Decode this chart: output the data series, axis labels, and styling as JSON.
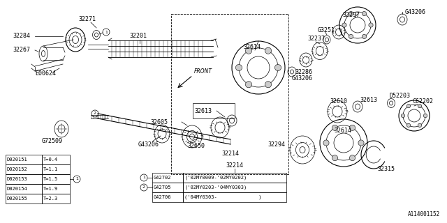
{
  "bg_color": "#FFFFFF",
  "diagram_number": "A114001152",
  "table1_rows": [
    [
      "D020151",
      "T=0.4"
    ],
    [
      "D020152",
      "T=1.1"
    ],
    [
      "D020153",
      "T=1.5"
    ],
    [
      "D020154",
      "T=1.9"
    ],
    [
      "D020155",
      "T=2.3"
    ]
  ],
  "table2_rows": [
    [
      "G42702",
      "('02MY0009-'02MY0202)"
    ],
    [
      "G42705",
      "('02MY0203-'04MY0303)"
    ],
    [
      "G42706",
      "('04MY0303-              )"
    ]
  ]
}
